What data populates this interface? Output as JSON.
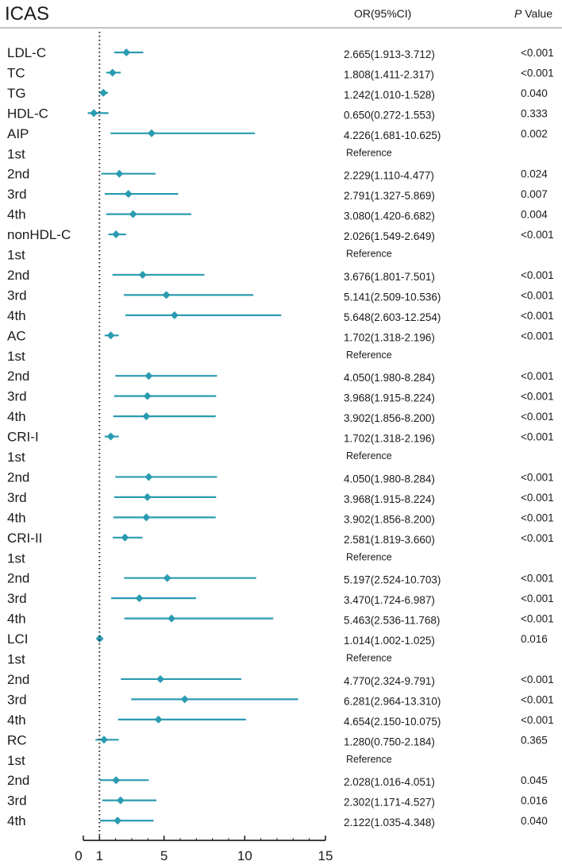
{
  "chart_data": {
    "type": "forest",
    "title": "ICAS",
    "col_or_header": "OR(95%CI)",
    "col_p_prefix": "P",
    "col_p_suffix": " Value",
    "reference_value": 1,
    "xlim": [
      0,
      15
    ],
    "xticks": [
      0,
      1,
      5,
      10,
      15
    ],
    "series_color": "#2a9bb0",
    "rows": [
      {
        "label": "LDL-C",
        "or": 2.665,
        "lo": 1.913,
        "hi": 3.712,
        "ci_text": "2.665(1.913-3.712)",
        "p": "<0.001"
      },
      {
        "label": "TC",
        "or": 1.808,
        "lo": 1.411,
        "hi": 2.317,
        "ci_text": "1.808(1.411-2.317)",
        "p": "<0.001"
      },
      {
        "label": "TG",
        "or": 1.242,
        "lo": 1.01,
        "hi": 1.528,
        "ci_text": "1.242(1.010-1.528)",
        "p": "0.040"
      },
      {
        "label": "HDL-C",
        "or": 0.65,
        "lo": 0.272,
        "hi": 1.553,
        "ci_text": "0.650(0.272-1.553)",
        "p": "0.333"
      },
      {
        "label": "AIP",
        "or": 4.226,
        "lo": 1.681,
        "hi": 10.625,
        "ci_text": "4.226(1.681-10.625)",
        "p": "0.002"
      },
      {
        "label": "1st",
        "ci_text": "Reference",
        "ref": true
      },
      {
        "label": "2nd",
        "or": 2.229,
        "lo": 1.11,
        "hi": 4.477,
        "ci_text": "2.229(1.110-4.477)",
        "p": "0.024"
      },
      {
        "label": "3rd",
        "or": 2.791,
        "lo": 1.327,
        "hi": 5.869,
        "ci_text": "2.791(1.327-5.869)",
        "p": "0.007"
      },
      {
        "label": "4th",
        "or": 3.08,
        "lo": 1.42,
        "hi": 6.682,
        "ci_text": "3.080(1.420-6.682)",
        "p": "0.004"
      },
      {
        "label": "nonHDL-C",
        "or": 2.026,
        "lo": 1.549,
        "hi": 2.649,
        "ci_text": "2.026(1.549-2.649)",
        "p": "<0.001"
      },
      {
        "label": "1st",
        "ci_text": "Reference",
        "ref": true
      },
      {
        "label": "2nd",
        "or": 3.676,
        "lo": 1.801,
        "hi": 7.501,
        "ci_text": "3.676(1.801-7.501)",
        "p": "<0.001"
      },
      {
        "label": "3rd",
        "or": 5.141,
        "lo": 2.509,
        "hi": 10.536,
        "ci_text": "5.141(2.509-10.536)",
        "p": "<0.001"
      },
      {
        "label": "4th",
        "or": 5.648,
        "lo": 2.603,
        "hi": 12.254,
        "ci_text": "5.648(2.603-12.254)",
        "p": "<0.001"
      },
      {
        "label": "AC",
        "or": 1.702,
        "lo": 1.318,
        "hi": 2.196,
        "ci_text": "1.702(1.318-2.196)",
        "p": "<0.001"
      },
      {
        "label": "1st",
        "ci_text": "Reference",
        "ref": true
      },
      {
        "label": "2nd",
        "or": 4.05,
        "lo": 1.98,
        "hi": 8.284,
        "ci_text": "4.050(1.980-8.284)",
        "p": "<0.001"
      },
      {
        "label": "3rd",
        "or": 3.968,
        "lo": 1.915,
        "hi": 8.224,
        "ci_text": "3.968(1.915-8.224)",
        "p": "<0.001"
      },
      {
        "label": "4th",
        "or": 3.902,
        "lo": 1.856,
        "hi": 8.2,
        "ci_text": "3.902(1.856-8.200)",
        "p": "<0.001"
      },
      {
        "label": "CRI-I",
        "or": 1.702,
        "lo": 1.318,
        "hi": 2.196,
        "ci_text": "1.702(1.318-2.196)",
        "p": "<0.001"
      },
      {
        "label": "1st",
        "ci_text": "Reference",
        "ref": true
      },
      {
        "label": "2nd",
        "or": 4.05,
        "lo": 1.98,
        "hi": 8.284,
        "ci_text": "4.050(1.980-8.284)",
        "p": "<0.001"
      },
      {
        "label": "3rd",
        "or": 3.968,
        "lo": 1.915,
        "hi": 8.224,
        "ci_text": "3.968(1.915-8.224)",
        "p": "<0.001"
      },
      {
        "label": "4th",
        "or": 3.902,
        "lo": 1.856,
        "hi": 8.2,
        "ci_text": "3.902(1.856-8.200)",
        "p": "<0.001"
      },
      {
        "label": "CRI-II",
        "or": 2.581,
        "lo": 1.819,
        "hi": 3.66,
        "ci_text": "2.581(1.819-3.660)",
        "p": "<0.001"
      },
      {
        "label": "1st",
        "ci_text": "Reference",
        "ref": true
      },
      {
        "label": "2nd",
        "or": 5.197,
        "lo": 2.524,
        "hi": 10.703,
        "ci_text": "5.197(2.524-10.703)",
        "p": "<0.001"
      },
      {
        "label": "3rd",
        "or": 3.47,
        "lo": 1.724,
        "hi": 6.987,
        "ci_text": "3.470(1.724-6.987)",
        "p": "<0.001"
      },
      {
        "label": "4th",
        "or": 5.463,
        "lo": 2.536,
        "hi": 11.768,
        "ci_text": "5.463(2.536-11.768)",
        "p": "<0.001"
      },
      {
        "label": "LCI",
        "or": 1.014,
        "lo": 1.002,
        "hi": 1.025,
        "ci_text": "1.014(1.002-1.025)",
        "p": "0.016"
      },
      {
        "label": "1st",
        "ci_text": "Reference",
        "ref": true
      },
      {
        "label": "2nd",
        "or": 4.77,
        "lo": 2.324,
        "hi": 9.791,
        "ci_text": "4.770(2.324-9.791)",
        "p": "<0.001"
      },
      {
        "label": "3rd",
        "or": 6.281,
        "lo": 2.964,
        "hi": 13.31,
        "ci_text": "6.281(2.964-13.310)",
        "p": "<0.001"
      },
      {
        "label": "4th",
        "or": 4.654,
        "lo": 2.15,
        "hi": 10.075,
        "ci_text": "4.654(2.150-10.075)",
        "p": "<0.001"
      },
      {
        "label": "RC",
        "or": 1.28,
        "lo": 0.75,
        "hi": 2.184,
        "ci_text": "1.280(0.750-2.184)",
        "p": "0.365"
      },
      {
        "label": "1st",
        "ci_text": "Reference",
        "ref": true
      },
      {
        "label": "2nd",
        "or": 2.028,
        "lo": 1.016,
        "hi": 4.051,
        "ci_text": "2.028(1.016-4.051)",
        "p": "0.045"
      },
      {
        "label": "3rd",
        "or": 2.302,
        "lo": 1.171,
        "hi": 4.527,
        "ci_text": "2.302(1.171-4.527)",
        "p": "0.016"
      },
      {
        "label": "4th",
        "or": 2.122,
        "lo": 1.035,
        "hi": 4.348,
        "ci_text": "2.122(1.035-4.348)",
        "p": "0.040"
      }
    ]
  }
}
